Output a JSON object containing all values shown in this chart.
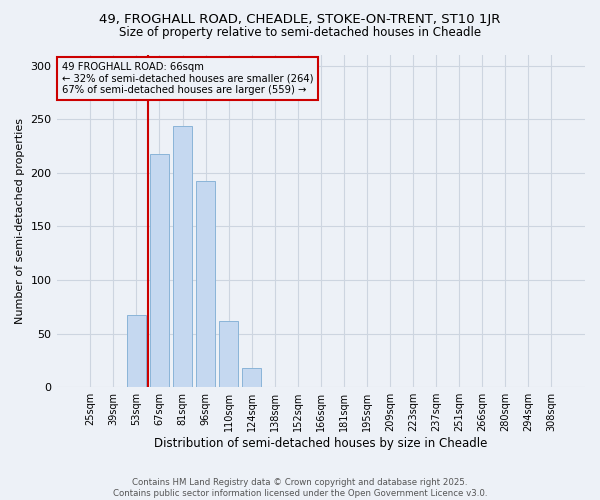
{
  "title_line1": "49, FROGHALL ROAD, CHEADLE, STOKE-ON-TRENT, ST10 1JR",
  "title_line2": "Size of property relative to semi-detached houses in Cheadle",
  "xlabel": "Distribution of semi-detached houses by size in Cheadle",
  "ylabel": "Number of semi-detached properties",
  "categories": [
    "25sqm",
    "39sqm",
    "53sqm",
    "67sqm",
    "81sqm",
    "96sqm",
    "110sqm",
    "124sqm",
    "138sqm",
    "152sqm",
    "166sqm",
    "181sqm",
    "195sqm",
    "209sqm",
    "223sqm",
    "237sqm",
    "251sqm",
    "266sqm",
    "280sqm",
    "294sqm",
    "308sqm"
  ],
  "values": [
    0,
    0,
    67,
    218,
    244,
    192,
    62,
    18,
    0,
    0,
    0,
    0,
    0,
    0,
    0,
    0,
    0,
    0,
    0,
    0,
    0
  ],
  "bar_color": "#c5d8f0",
  "bar_edge_color": "#8ab4d8",
  "property_label": "49 FROGHALL ROAD: 66sqm",
  "pct_smaller": 32,
  "count_smaller": 264,
  "pct_larger": 67,
  "count_larger": 559,
  "vline_color": "#cc0000",
  "annotation_box_color": "#cc0000",
  "ylim": [
    0,
    310
  ],
  "yticks": [
    0,
    50,
    100,
    150,
    200,
    250,
    300
  ],
  "grid_color": "#cdd5e0",
  "background_color": "#edf1f7",
  "footer_line1": "Contains HM Land Registry data © Crown copyright and database right 2025.",
  "footer_line2": "Contains public sector information licensed under the Open Government Licence v3.0.",
  "vline_x_index": 2.5
}
